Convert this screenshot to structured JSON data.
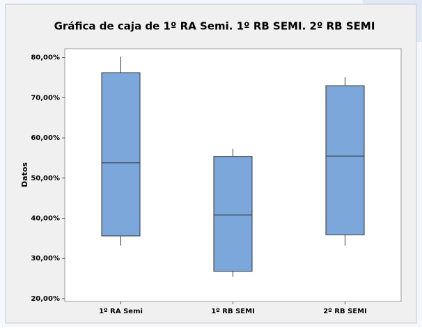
{
  "chart_data": {
    "type": "box",
    "title": "Gráfica de caja de 1º RA Semi. 1º RB SEMI. 2º RB SEMI",
    "y_label": "Datos",
    "categories": [
      "1º RA Semi",
      "1º RB SEMI",
      "2º RB SEMI"
    ],
    "boxes": [
      {
        "min": 33.2,
        "q1": 35.6,
        "median": 53.8,
        "q3": 76.2,
        "max": 80.2
      },
      {
        "min": 25.4,
        "q1": 26.8,
        "median": 40.8,
        "q3": 55.4,
        "max": 57.3
      },
      {
        "min": 33.2,
        "q1": 35.9,
        "median": 55.5,
        "q3": 73.0,
        "max": 75.1
      }
    ],
    "color": "#7ba7db",
    "ylim": [
      19.3,
      82.2
    ],
    "yticks": [
      {
        "value": 20,
        "label": "20,00%"
      },
      {
        "value": 30,
        "label": "30,00%"
      },
      {
        "value": 40,
        "label": "40,00%"
      },
      {
        "value": 50,
        "label": "50,00%"
      },
      {
        "value": 60,
        "label": "60,00%"
      },
      {
        "value": 70,
        "label": "70,00%"
      },
      {
        "value": 80,
        "label": "80,00%"
      }
    ]
  }
}
